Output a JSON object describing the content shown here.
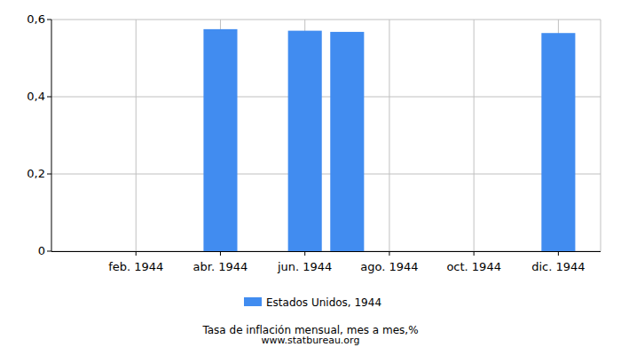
{
  "chart_data": {
    "type": "bar",
    "title": "Tasa de inflación mensual, mes a mes,%",
    "subtitle": "www.statbureau.org",
    "categories": [
      null,
      "feb. 1944",
      null,
      "abr. 1944",
      null,
      "jun. 1944",
      null,
      "ago. 1944",
      null,
      "oct. 1944",
      null,
      "dic. 1944"
    ],
    "series": [
      {
        "name": "Estados Unidos, 1944",
        "color": "#418cf0",
        "values": [
          0,
          0,
          0,
          0.575,
          0,
          0.571,
          0.568,
          0,
          0,
          0,
          0,
          0.565
        ]
      }
    ],
    "ylim": [
      0,
      0.6
    ],
    "yticks": [
      0,
      {
        "value": 0.2,
        "label": "0,2"
      },
      {
        "value": 0.4,
        "label": "0,4"
      },
      {
        "value": 0.6,
        "label": "0,6"
      }
    ],
    "grid": true,
    "legend": "bottom"
  }
}
